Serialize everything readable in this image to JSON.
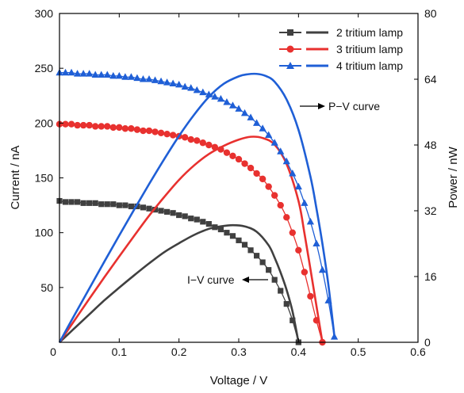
{
  "chart_data": {
    "type": "line",
    "xlabel": "Voltage / V",
    "ylabel_left": "Current / nA",
    "ylabel_right": "Power / nW",
    "xlim": [
      0,
      0.6
    ],
    "ylim_left": [
      0,
      300
    ],
    "ylim_right": [
      0,
      80
    ],
    "xticks": [
      "0",
      "0.1",
      "0.2",
      "0.3",
      "0.4",
      "0.5",
      "0.6"
    ],
    "yticks_left": [
      "0",
      "50",
      "100",
      "150",
      "200",
      "250",
      "300"
    ],
    "yticks_right": [
      "0",
      "16",
      "32",
      "48",
      "64",
      "80"
    ],
    "grid": false,
    "legend_position": "top-right",
    "series": [
      {
        "name": "2 tritium lamp",
        "color": "#404040",
        "marker": "square",
        "iv": {
          "x": [
            0.0,
            0.01,
            0.02,
            0.03,
            0.04,
            0.05,
            0.06,
            0.07,
            0.08,
            0.09,
            0.1,
            0.11,
            0.12,
            0.13,
            0.14,
            0.15,
            0.16,
            0.17,
            0.18,
            0.19,
            0.2,
            0.21,
            0.22,
            0.23,
            0.24,
            0.25,
            0.26,
            0.27,
            0.28,
            0.29,
            0.3,
            0.31,
            0.32,
            0.33,
            0.34,
            0.35,
            0.36,
            0.37,
            0.38,
            0.39,
            0.4
          ],
          "y": [
            129,
            128,
            128,
            128,
            127,
            127,
            127,
            126,
            126,
            126,
            125,
            125,
            124,
            124,
            123,
            122,
            121,
            120,
            119,
            118,
            116,
            115,
            113,
            112,
            110,
            108,
            105,
            103,
            100,
            97,
            93,
            89,
            84,
            79,
            73,
            66,
            57,
            47,
            35,
            20,
            0
          ]
        },
        "pv": {
          "x": [
            0.0,
            0.025,
            0.05,
            0.075,
            0.1,
            0.125,
            0.15,
            0.175,
            0.2,
            0.225,
            0.25,
            0.27,
            0.29,
            0.31,
            0.33,
            0.35,
            0.36,
            0.37,
            0.38,
            0.39,
            0.4
          ],
          "y": [
            0,
            3.4,
            6.8,
            10.2,
            13.3,
            16.3,
            19.2,
            21.9,
            24.1,
            26.1,
            27.6,
            28.2,
            28.5,
            28.2,
            26.9,
            23.6,
            20.6,
            17.0,
            12.8,
            7.5,
            0
          ]
        }
      },
      {
        "name": "3 tritium lamp",
        "color": "#e8312f",
        "marker": "circle",
        "iv": {
          "x": [
            0.0,
            0.01,
            0.02,
            0.03,
            0.04,
            0.05,
            0.06,
            0.07,
            0.08,
            0.09,
            0.1,
            0.11,
            0.12,
            0.13,
            0.14,
            0.15,
            0.16,
            0.17,
            0.18,
            0.19,
            0.2,
            0.21,
            0.22,
            0.23,
            0.24,
            0.25,
            0.26,
            0.27,
            0.28,
            0.29,
            0.3,
            0.31,
            0.32,
            0.33,
            0.34,
            0.35,
            0.36,
            0.37,
            0.38,
            0.39,
            0.4,
            0.41,
            0.42,
            0.43,
            0.44
          ],
          "y": [
            199,
            199,
            199,
            198,
            198,
            198,
            197,
            197,
            197,
            196,
            196,
            195,
            195,
            194,
            193,
            193,
            192,
            191,
            190,
            189,
            188,
            187,
            185,
            184,
            182,
            180,
            178,
            176,
            173,
            170,
            167,
            163,
            159,
            154,
            149,
            142,
            134,
            125,
            114,
            100,
            84,
            64,
            42,
            20,
            0
          ]
        },
        "pv": {
          "x": [
            0.0,
            0.025,
            0.05,
            0.075,
            0.1,
            0.125,
            0.15,
            0.175,
            0.2,
            0.225,
            0.25,
            0.275,
            0.3,
            0.32,
            0.34,
            0.36,
            0.38,
            0.4,
            0.41,
            0.42,
            0.43,
            0.44
          ],
          "y": [
            0,
            5.3,
            10.6,
            15.8,
            20.9,
            25.9,
            30.8,
            35.3,
            39.5,
            43.0,
            45.8,
            47.8,
            49.3,
            50.0,
            49.7,
            48.1,
            43.4,
            34.4,
            26.5,
            17.8,
            8.9,
            0
          ]
        }
      },
      {
        "name": "4 tritium lamp",
        "color": "#1f5fd6",
        "marker": "triangle",
        "iv": {
          "x": [
            0.0,
            0.01,
            0.02,
            0.03,
            0.04,
            0.05,
            0.06,
            0.07,
            0.08,
            0.09,
            0.1,
            0.11,
            0.12,
            0.13,
            0.14,
            0.15,
            0.16,
            0.17,
            0.18,
            0.19,
            0.2,
            0.21,
            0.22,
            0.23,
            0.24,
            0.25,
            0.26,
            0.27,
            0.28,
            0.29,
            0.3,
            0.31,
            0.32,
            0.33,
            0.34,
            0.35,
            0.36,
            0.37,
            0.38,
            0.39,
            0.4,
            0.41,
            0.42,
            0.43,
            0.44,
            0.45,
            0.46
          ],
          "y": [
            246,
            246,
            246,
            245,
            245,
            245,
            244,
            244,
            244,
            243,
            243,
            242,
            242,
            241,
            240,
            240,
            239,
            238,
            237,
            236,
            235,
            233,
            232,
            230,
            228,
            226,
            224,
            222,
            219,
            216,
            213,
            209,
            205,
            200,
            195,
            189,
            182,
            174,
            165,
            154,
            142,
            127,
            110,
            90,
            66,
            38,
            5
          ]
        },
        "pv": {
          "x": [
            0.0,
            0.025,
            0.05,
            0.075,
            0.1,
            0.125,
            0.15,
            0.175,
            0.2,
            0.225,
            0.25,
            0.275,
            0.3,
            0.315,
            0.33,
            0.345,
            0.36,
            0.38,
            0.4,
            0.42,
            0.43,
            0.44,
            0.45,
            0.46
          ],
          "y": [
            0,
            6.6,
            13.1,
            19.6,
            26.0,
            32.3,
            38.5,
            44.5,
            50.2,
            55.3,
            59.7,
            62.9,
            64.7,
            65.2,
            65.3,
            64.8,
            63.4,
            59.1,
            51.7,
            40.3,
            32.6,
            24.0,
            14.0,
            1.6
          ]
        }
      }
    ],
    "annotations": {
      "pv_curve": "P−V curve",
      "iv_curve": "I−V curve"
    }
  }
}
